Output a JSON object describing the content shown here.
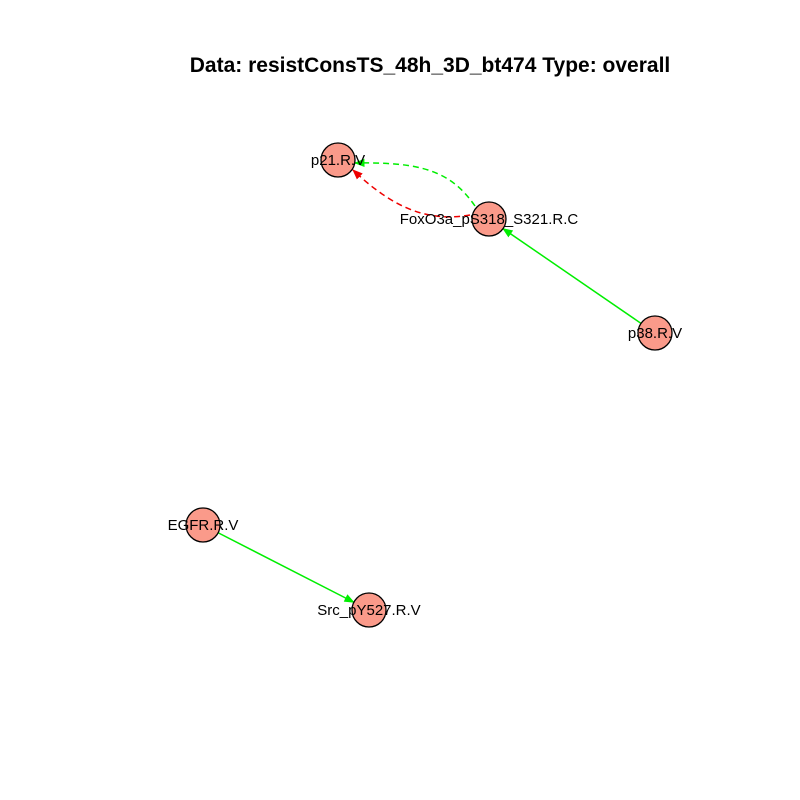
{
  "title": "Data: resistConsTS_48h_3D_bt474 Type: overall",
  "colors": {
    "node_fill": "#fa9a8a",
    "node_stroke": "#000000",
    "edge_green": "#00ee00",
    "edge_red": "#ee0000",
    "background": "#ffffff"
  },
  "nodes": [
    {
      "id": "p21",
      "label": "p21.R.V"
    },
    {
      "id": "foxo3a",
      "label": "FoxO3a_pS318_S321.R.C"
    },
    {
      "id": "p38",
      "label": "p38.R.V"
    },
    {
      "id": "egfr",
      "label": "EGFR.R.V"
    },
    {
      "id": "src",
      "label": "Src_pY527.R.V"
    }
  ],
  "edges": [
    {
      "from": "foxo3a",
      "to": "p21",
      "color": "green",
      "style": "dashed"
    },
    {
      "from": "foxo3a",
      "to": "p21",
      "color": "red",
      "style": "dashed"
    },
    {
      "from": "p38",
      "to": "foxo3a",
      "color": "green",
      "style": "solid"
    },
    {
      "from": "egfr",
      "to": "src",
      "color": "green",
      "style": "solid"
    }
  ]
}
